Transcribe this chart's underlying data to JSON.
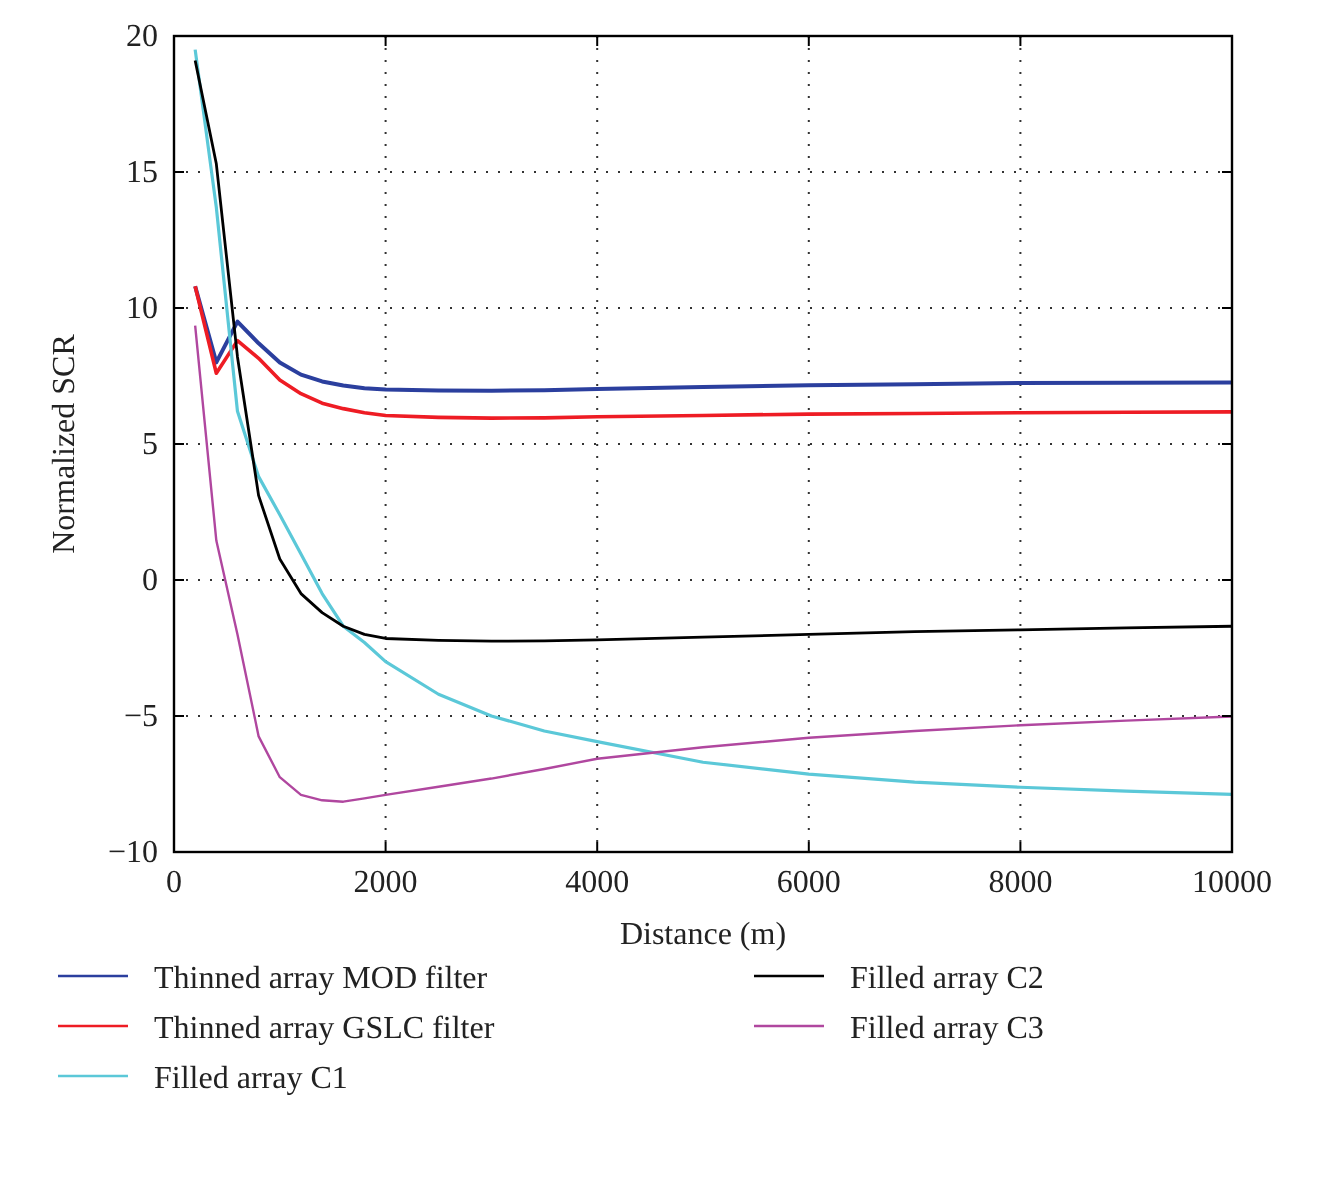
{
  "chart_data": {
    "type": "line",
    "xlabel": "Distance (m)",
    "ylabel": "Normalized SCR",
    "xlim": [
      0,
      10000
    ],
    "ylim": [
      -10,
      20
    ],
    "xticks": [
      0,
      2000,
      4000,
      6000,
      8000,
      10000
    ],
    "yticks": [
      -10,
      -5,
      0,
      5,
      10,
      15,
      20
    ],
    "grid": true,
    "legend": "bottom",
    "line_style": "solid",
    "marker": "none",
    "x": [
      200,
      400,
      600,
      800,
      1000,
      1200,
      1400,
      1600,
      1800,
      2000,
      2500,
      3000,
      3500,
      4000,
      5000,
      6000,
      7000,
      8000,
      9000,
      10000
    ],
    "series": [
      {
        "name": "Thinned array MOD filter",
        "color": "#2b3f9e",
        "values": [
          10.8,
          8.0,
          9.5,
          8.7,
          8.0,
          7.55,
          7.3,
          7.15,
          7.05,
          7.0,
          6.97,
          6.96,
          6.98,
          7.02,
          7.1,
          7.16,
          7.2,
          7.24,
          7.25,
          7.26
        ]
      },
      {
        "name": "Thinned array GSLC filter",
        "color": "#ee1c24",
        "values": [
          10.8,
          7.6,
          8.8,
          8.15,
          7.35,
          6.85,
          6.5,
          6.3,
          6.15,
          6.05,
          5.98,
          5.95,
          5.96,
          6.0,
          6.05,
          6.1,
          6.12,
          6.15,
          6.17,
          6.18
        ]
      },
      {
        "name": "Filled array C1",
        "color": "#5bc8d8",
        "values": [
          19.5,
          13.7,
          6.2,
          3.8,
          2.4,
          0.96,
          -0.5,
          -1.7,
          -2.3,
          -3.0,
          -4.2,
          -5.0,
          -5.55,
          -5.94,
          -6.7,
          -7.14,
          -7.43,
          -7.62,
          -7.76,
          -7.88
        ]
      },
      {
        "name": "Filled array C2",
        "color": "#000000",
        "values": [
          19.1,
          15.3,
          8.2,
          3.1,
          0.77,
          -0.5,
          -1.2,
          -1.7,
          -2.0,
          -2.15,
          -2.22,
          -2.25,
          -2.24,
          -2.2,
          -2.1,
          -2.0,
          -1.9,
          -1.83,
          -1.76,
          -1.7
        ]
      },
      {
        "name": "Filled array C3",
        "color": "#b0479f",
        "values": [
          9.35,
          1.45,
          -2.0,
          -5.75,
          -7.25,
          -7.9,
          -8.1,
          -8.15,
          -8.03,
          -7.9,
          -7.6,
          -7.3,
          -6.95,
          -6.57,
          -6.15,
          -5.8,
          -5.55,
          -5.34,
          -5.17,
          -5.02
        ]
      }
    ]
  }
}
